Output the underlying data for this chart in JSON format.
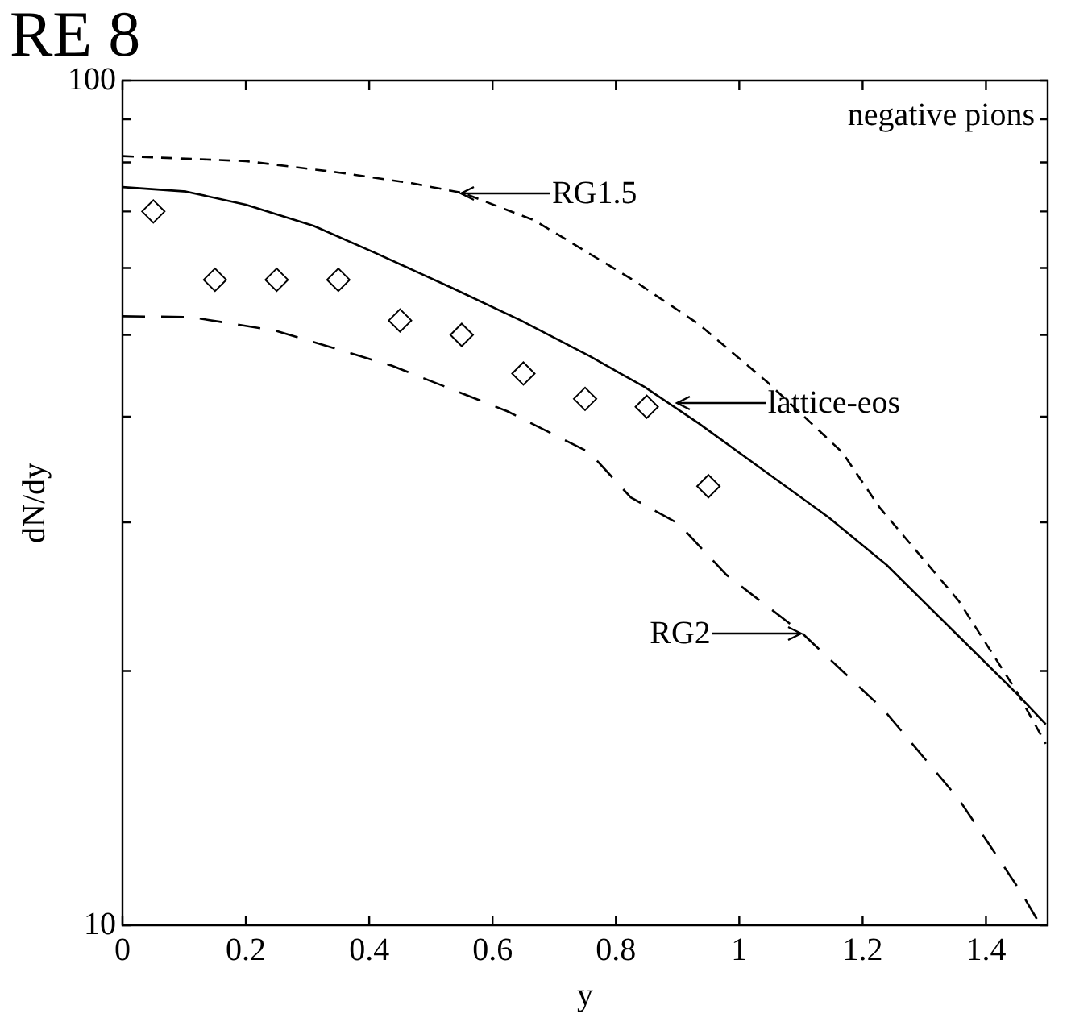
{
  "chart_data": {
    "type": "line",
    "title": "RE 8",
    "xlabel": "y",
    "ylabel": "dN/dy",
    "log": "y",
    "xlim": [
      0,
      1.5
    ],
    "xticks": [
      0,
      0.2,
      0.4,
      0.6,
      0.8,
      1,
      1.2,
      1.4
    ],
    "ylim": [
      10,
      100
    ],
    "yticks": [
      10,
      {
        "value": 20,
        "label": null
      },
      {
        "value": 30,
        "label": null
      },
      {
        "value": 40,
        "label": null
      },
      {
        "value": 50,
        "label": null
      },
      {
        "value": 60,
        "label": null
      },
      {
        "value": 70,
        "label": null
      },
      {
        "value": 80,
        "label": null
      },
      {
        "value": 90,
        "label": null
      },
      100
    ],
    "grid": false,
    "legend": false,
    "series": [
      {
        "type": "line",
        "line_style": "solid",
        "marker": "none",
        "color": "#000000",
        "x": [
          0,
          0.103,
          0.2,
          0.31,
          0.41,
          0.535,
          0.646,
          0.757,
          0.846,
          0.934,
          1.029,
          1.145,
          1.239,
          1.35,
          1.45,
          1.497
        ],
        "values": [
          74.8,
          73.9,
          71.3,
          67.3,
          62.5,
          56.8,
          52.0,
          47.2,
          43.4,
          39.3,
          35.0,
          30.4,
          26.7,
          22.2,
          18.8,
          17.3
        ]
      },
      {
        "type": "line",
        "line_style": "dashed",
        "marker": "none",
        "color": "#000000",
        "x": [
          0,
          0.2,
          0.347,
          0.469,
          0.552,
          0.668,
          0.824,
          0.934,
          1.045,
          1.167,
          1.228,
          1.356,
          1.45,
          1.497
        ],
        "values": [
          81.4,
          80.3,
          77.9,
          75.6,
          73.6,
          68.3,
          58.3,
          51.5,
          44.0,
          36.3,
          31.2,
          24.2,
          18.9,
          16.4
        ]
      },
      {
        "type": "line",
        "line_style": "dashed",
        "marker": "none",
        "color": "#000000",
        "x": [
          0,
          0.109,
          0.247,
          0.436,
          0.624,
          0.757,
          0.824,
          0.901,
          0.979,
          1.101,
          1.234,
          1.356,
          1.455,
          1.485
        ],
        "values": [
          52.6,
          52.5,
          50.6,
          46.0,
          40.6,
          36.3,
          32.1,
          29.9,
          26.0,
          22.2,
          18.0,
          14.1,
          11.0,
          10.1
        ]
      },
      {
        "type": "scatter",
        "marker": "diamond",
        "color": "#000000",
        "x": [
          0.05,
          0.15,
          0.25,
          0.35,
          0.45,
          0.55,
          0.65,
          0.75,
          0.85,
          0.95
        ],
        "values": [
          70.0,
          58.1,
          58.1,
          58.1,
          52.0,
          50.0,
          45.0,
          42.0,
          41.1,
          33.1
        ]
      }
    ],
    "annotations": [
      "negative pions",
      {
        "text": "RG1.5",
        "x": 0.55,
        "y": 73.6
      },
      {
        "text": "lattice-eos",
        "x": 0.9,
        "y": 41.5
      },
      {
        "text": "RG2",
        "x": 1.1,
        "y": 22.2
      }
    ]
  }
}
